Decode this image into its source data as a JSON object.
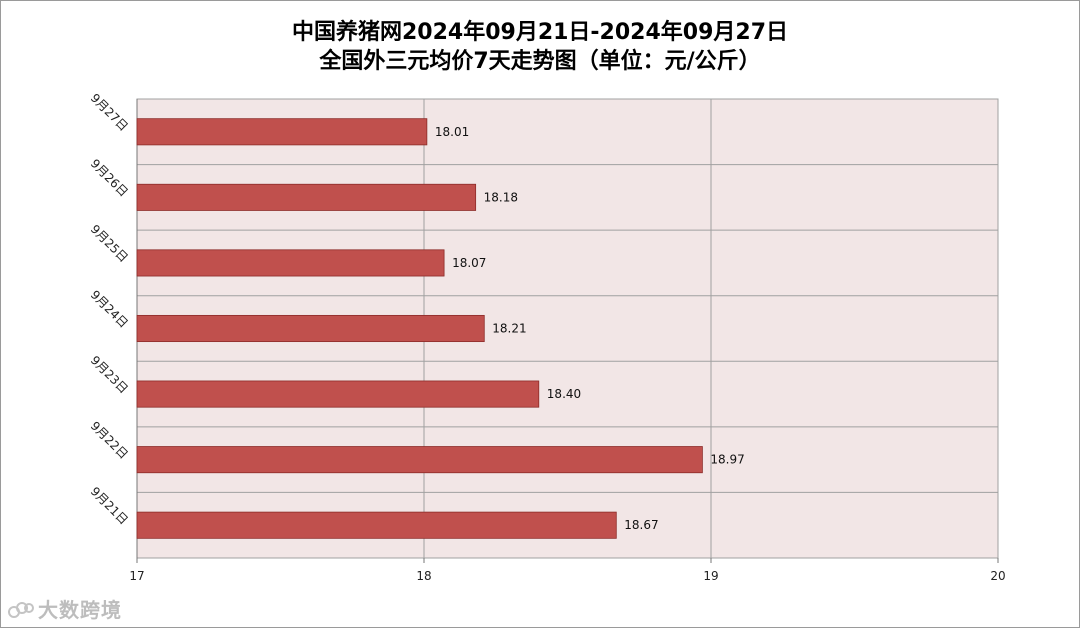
{
  "chart_data": {
    "type": "bar",
    "orientation": "horizontal",
    "title": "中国养猪网2024年09月21日-2024年09月27日",
    "subtitle": "全国外三元均价7天走势图（单位：元/公斤）",
    "categories": [
      "9月27日",
      "9月26日",
      "9月25日",
      "9月24日",
      "9月23日",
      "9月22日",
      "9月21日"
    ],
    "values": [
      18.01,
      18.18,
      18.07,
      18.21,
      18.4,
      18.97,
      18.67
    ],
    "value_labels": [
      "18.01",
      "18.18",
      "18.07",
      "18.21",
      "18.40",
      "18.97",
      "18.67"
    ],
    "xlim": [
      17,
      20
    ],
    "xticks": [
      "17",
      "18",
      "19",
      "20"
    ],
    "xlabel": "",
    "ylabel": "",
    "grid": true,
    "legend": "none",
    "colors": {
      "bar": "#c0504d",
      "bar_edge": "#8c2b28",
      "plot_bg": "#f2e6e6",
      "grid": "#a0a0a0"
    }
  },
  "watermark": "大数跨境"
}
